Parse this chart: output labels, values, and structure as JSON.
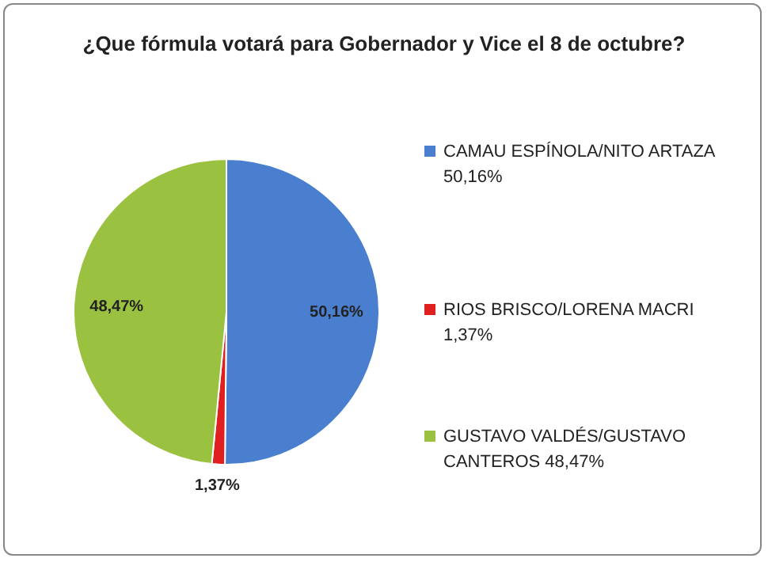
{
  "chart_data": {
    "type": "pie",
    "title": "¿Que fórmula votará para Gobernador y Vice el 8 de octubre?",
    "categories": [
      "CAMAU ESPÍNOLA/NITO ARTAZA 50,16%",
      "RIOS BRISCO/LORENA MACRI 1,37%",
      "GUSTAVO VALDÉS/GUSTAVO CANTEROS 48,47%"
    ],
    "values": [
      50.16,
      1.37,
      48.47
    ],
    "colors": [
      "#4a7fd0",
      "#e02020",
      "#9bc140"
    ],
    "value_labels": [
      "50,16%",
      "1,37%",
      "48,47%"
    ],
    "legend": "right"
  }
}
